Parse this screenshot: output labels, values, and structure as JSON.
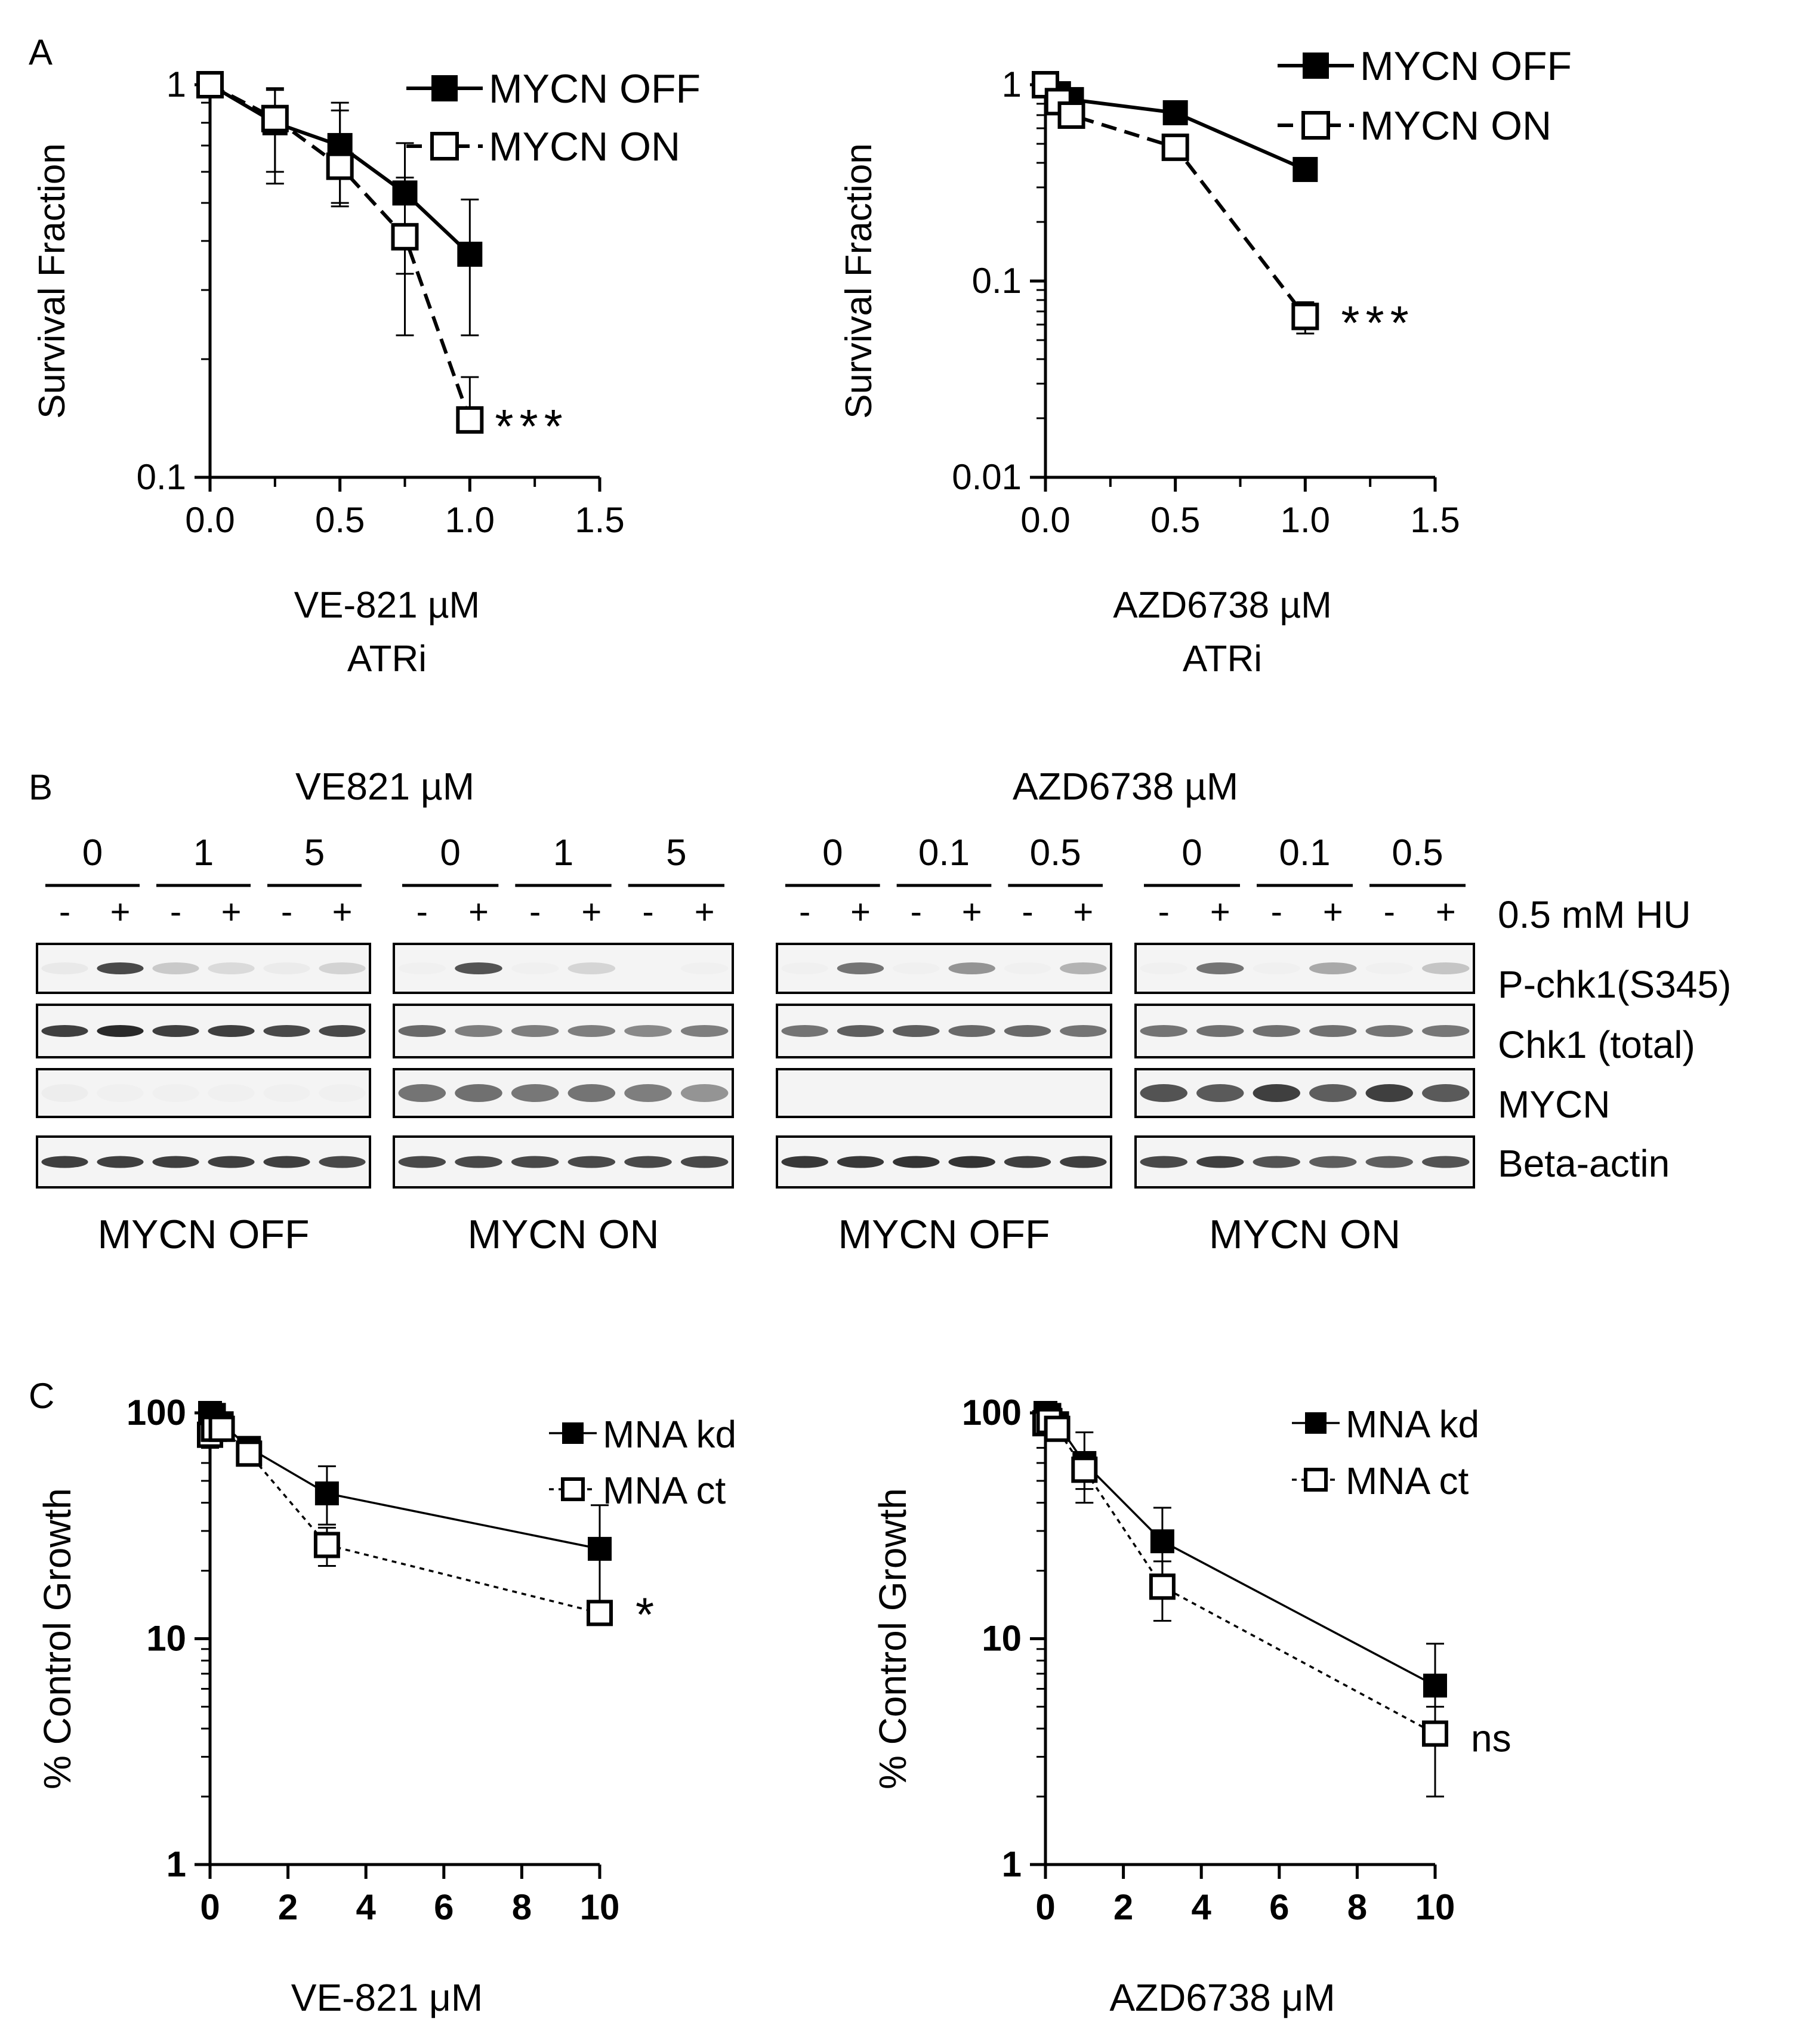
{
  "panel_labels": {
    "a": "A",
    "b": "B",
    "c": "C"
  },
  "colors": {
    "ink": "#000000",
    "open_fill": "#ffffff",
    "membrane_bg": "#f4f4f4",
    "band": "#1e1e1e"
  },
  "chart_data": [
    {
      "id": "a1",
      "type": "line",
      "ylog": true,
      "xlabel": "VE-821 µM",
      "xlabel2": "ATRi",
      "ylabel": "Survival Fraction",
      "xlim": [
        0,
        1.5
      ],
      "ylim": [
        0.1,
        1
      ],
      "xticks": [
        0.0,
        0.5,
        1.0,
        1.5
      ],
      "xtick_labels": [
        "0.0",
        "0.5",
        "1.0",
        "1.5"
      ],
      "xminor": [
        0.25,
        0.75,
        1.25
      ],
      "yticks": [
        0.1,
        1
      ],
      "ytick_labels": [
        "0.1",
        "1"
      ],
      "series": [
        {
          "name": "MYCN OFF",
          "marker": "filled",
          "line": "solid",
          "x": [
            0,
            0.25,
            0.5,
            0.75,
            1.0
          ],
          "y": [
            1.0,
            0.8,
            0.7,
            0.53,
            0.37
          ],
          "err_lo": [
            1.0,
            0.56,
            0.5,
            0.33,
            0.23
          ],
          "err_hi": [
            1.0,
            0.98,
            0.9,
            0.71,
            0.51
          ]
        },
        {
          "name": "MYCN ON",
          "marker": "open",
          "line": "dashed",
          "x": [
            0,
            0.25,
            0.5,
            0.75,
            1.0
          ],
          "y": [
            1.0,
            0.82,
            0.62,
            0.41,
            0.14
          ],
          "err_lo": [
            1.0,
            0.6,
            0.49,
            0.23,
            0.14
          ],
          "err_hi": [
            1.0,
            0.97,
            0.86,
            0.58,
            0.18
          ]
        }
      ],
      "annotation": {
        "text": "***",
        "x": 1.0,
        "y": 0.14
      }
    },
    {
      "id": "a2",
      "type": "line",
      "ylog": true,
      "xlabel": "AZD6738 µM",
      "xlabel2": "ATRi",
      "ylabel": "Survival Fraction",
      "xlim": [
        0,
        1.5
      ],
      "ylim": [
        0.01,
        1
      ],
      "xticks": [
        0.0,
        0.5,
        1.0,
        1.5
      ],
      "xtick_labels": [
        "0.0",
        "0.5",
        "1.0",
        "1.5"
      ],
      "xminor": [
        0.25,
        0.75,
        1.25
      ],
      "yticks": [
        0.01,
        0.1,
        1
      ],
      "ytick_labels": [
        "0.01",
        "0.1",
        "1"
      ],
      "series": [
        {
          "name": "MYCN OFF",
          "marker": "filled",
          "line": "solid",
          "x": [
            0,
            0.05,
            0.1,
            0.5,
            1.0
          ],
          "y": [
            1.0,
            0.9,
            0.84,
            0.72,
            0.37
          ],
          "err_lo": [
            1.0,
            0.87,
            0.8,
            0.68,
            0.34
          ],
          "err_hi": [
            1.0,
            0.93,
            0.88,
            0.76,
            0.4
          ]
        },
        {
          "name": "MYCN ON",
          "marker": "open",
          "line": "dashed",
          "x": [
            0,
            0.05,
            0.1,
            0.5,
            1.0
          ],
          "y": [
            1.0,
            0.82,
            0.7,
            0.48,
            0.066
          ],
          "err_lo": [
            1.0,
            0.79,
            0.67,
            0.45,
            0.054
          ],
          "err_hi": [
            1.0,
            0.85,
            0.73,
            0.51,
            0.078
          ]
        }
      ],
      "annotation": {
        "text": "***",
        "x": 1.0,
        "y": 0.066
      }
    },
    {
      "id": "c1",
      "type": "line",
      "ylog": true,
      "xlabel": "VE-821 μM",
      "ylabel": "% Control Growth",
      "xlim": [
        0,
        10
      ],
      "ylim": [
        1,
        100
      ],
      "xticks": [
        0,
        2,
        4,
        6,
        8,
        10
      ],
      "xtick_labels": [
        "0",
        "2",
        "4",
        "6",
        "8",
        "10"
      ],
      "yticks": [
        1,
        10,
        100
      ],
      "ytick_labels": [
        "1",
        "10",
        "100"
      ],
      "series": [
        {
          "name": "MNA kd",
          "marker": "filled",
          "line": "solid",
          "x": [
            0,
            0.1,
            0.3,
            1,
            3,
            10
          ],
          "y": [
            100,
            98,
            90,
            70,
            44,
            25
          ],
          "err_lo": [
            95,
            92,
            80,
            62,
            32,
            14
          ],
          "err_hi": [
            105,
            104,
            100,
            78,
            58,
            39
          ]
        },
        {
          "name": "MNA ct",
          "marker": "open",
          "line": "dotted",
          "x": [
            0,
            0.1,
            0.3,
            1,
            3,
            10
          ],
          "y": [
            80,
            85,
            85,
            66,
            26,
            13
          ],
          "err_lo": [
            70,
            75,
            78,
            60,
            21,
            12
          ],
          "err_hi": [
            88,
            93,
            92,
            72,
            31,
            14
          ]
        }
      ],
      "annotation": {
        "text": "*",
        "x": 10,
        "y": 13
      }
    },
    {
      "id": "c2",
      "type": "line",
      "ylog": true,
      "xlabel": "AZD6738 μM",
      "ylabel": "% Control Growth",
      "xlim": [
        0,
        10
      ],
      "ylim": [
        1,
        100
      ],
      "xticks": [
        0,
        2,
        4,
        6,
        8,
        10
      ],
      "xtick_labels": [
        "0",
        "2",
        "4",
        "6",
        "8",
        "10"
      ],
      "yticks": [
        1,
        10,
        100
      ],
      "ytick_labels": [
        "1",
        "10",
        "100"
      ],
      "series": [
        {
          "name": "MNA kd",
          "marker": "filled",
          "line": "solid",
          "x": [
            0,
            0.1,
            0.3,
            1,
            3,
            10
          ],
          "y": [
            100,
            98,
            90,
            60,
            27,
            6.2
          ],
          "err_lo": [
            95,
            92,
            82,
            40,
            18,
            4
          ],
          "err_hi": [
            105,
            104,
            98,
            82,
            38,
            9.5
          ]
        },
        {
          "name": "MNA ct",
          "marker": "open",
          "line": "dotted",
          "x": [
            0,
            0.1,
            0.3,
            1,
            3,
            10
          ],
          "y": [
            90,
            92,
            85,
            56,
            17,
            3.8
          ],
          "err_lo": [
            80,
            84,
            76,
            46,
            12,
            2
          ],
          "err_hi": [
            98,
            100,
            94,
            66,
            22,
            5
          ]
        }
      ],
      "annotation": {
        "text": "ns",
        "x": 10,
        "y": 3.8
      }
    }
  ],
  "blot": {
    "drugs": [
      "VE821 µM",
      "AZD6738 µM"
    ],
    "doses": [
      [
        "0",
        "1",
        "5",
        "0",
        "1",
        "5"
      ],
      [
        "0",
        "0.1",
        "0.5",
        "0",
        "0.1",
        "0.5"
      ]
    ],
    "hu_signs": [
      "-",
      "+"
    ],
    "hu_label": "0.5 mM HU",
    "row_labels": [
      "P-chk1(S345)",
      "Chk1 (total)",
      "MYCN",
      "Beta-actin"
    ],
    "group_labels": [
      "MYCN OFF",
      "MYCN ON",
      "MYCN OFF",
      "MYCN ON"
    ],
    "band_intensity": [
      [
        [
          0.05,
          0.8,
          0.2,
          0.12,
          0.04,
          0.15
        ],
        [
          0.02,
          0.75,
          0.02,
          0.14,
          0.01,
          0.02
        ],
        [
          0.02,
          0.6,
          0.02,
          0.45,
          0.02,
          0.3
        ],
        [
          0.02,
          0.6,
          0.02,
          0.35,
          0.02,
          0.22
        ]
      ],
      [
        [
          0.85,
          0.95,
          0.85,
          0.85,
          0.8,
          0.8
        ],
        [
          0.65,
          0.55,
          0.55,
          0.55,
          0.5,
          0.55
        ],
        [
          0.6,
          0.7,
          0.7,
          0.65,
          0.65,
          0.6
        ],
        [
          0.6,
          0.62,
          0.62,
          0.62,
          0.6,
          0.58
        ]
      ],
      [
        [
          0.03,
          0.02,
          0.02,
          0.02,
          0.02,
          0.02
        ],
        [
          0.6,
          0.62,
          0.58,
          0.6,
          0.55,
          0.45
        ],
        [
          0.0,
          0.0,
          0.0,
          0.0,
          0.0,
          0.0
        ],
        [
          0.75,
          0.72,
          0.85,
          0.7,
          0.85,
          0.72
        ]
      ],
      [
        [
          0.85,
          0.85,
          0.85,
          0.85,
          0.85,
          0.8
        ],
        [
          0.8,
          0.8,
          0.8,
          0.8,
          0.8,
          0.8
        ],
        [
          0.88,
          0.88,
          0.9,
          0.9,
          0.85,
          0.85
        ],
        [
          0.8,
          0.85,
          0.75,
          0.7,
          0.7,
          0.75
        ]
      ]
    ]
  }
}
